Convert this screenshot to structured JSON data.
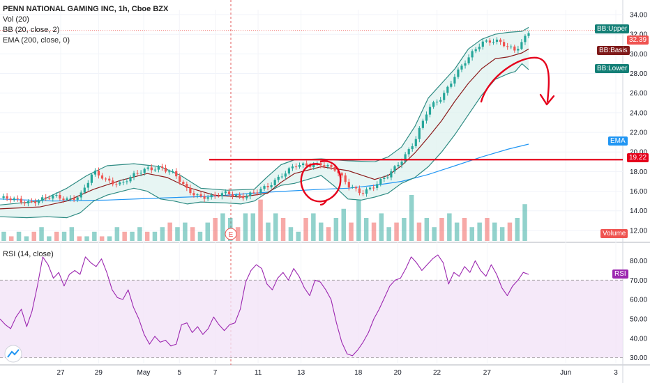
{
  "legend": {
    "title": "PENN NATIONAL GAMING INC, 1h, Cboe BZX",
    "vol": "Vol (20)",
    "bb": "BB (20, close, 2)",
    "ema": "EMA (200, close, 0)",
    "rsi": "RSI (14, close)"
  },
  "tags": {
    "bb_upper": "BB:Upper",
    "bb_basis": "BB:Basis",
    "bb_lower": "BB:Lower",
    "ema": "EMA",
    "volume": "Volume",
    "rsi": "RSI",
    "last_price": "32.39",
    "level_price": "19.22"
  },
  "colors": {
    "up": "#26a69a",
    "down": "#ef5350",
    "bb_band": "#2e8b83",
    "bb_basis": "#8b1a1a",
    "ema": "#2196f3",
    "rsi": "#9c27b0",
    "annotation": "#e5001b"
  },
  "chart_data": [
    {
      "type": "candlestick",
      "title": "PENN NATIONAL GAMING INC, 1h, Cboe BZX",
      "ylim": [
        11,
        34.5
      ],
      "y_ticks": [
        12,
        14,
        16,
        18,
        20,
        22,
        24,
        26,
        28,
        30,
        32,
        34
      ],
      "x_ticks": [
        "27",
        "29",
        "May",
        "5",
        "7",
        "11",
        "13",
        "18",
        "20",
        "22",
        "27",
        "Jun",
        "3"
      ],
      "series": {
        "close_path": [
          [
            0,
            15.3
          ],
          [
            2,
            14.9
          ],
          [
            4,
            15.4
          ],
          [
            5,
            15.2
          ],
          [
            6,
            15.6
          ],
          [
            7,
            17.9
          ],
          [
            8,
            17.1
          ],
          [
            9,
            16.8
          ],
          [
            11,
            18.3
          ],
          [
            12,
            18.5
          ],
          [
            13,
            17.7
          ],
          [
            14,
            16.1
          ],
          [
            15,
            15.5
          ],
          [
            16,
            15.4
          ],
          [
            17,
            15.8
          ],
          [
            18,
            15.5
          ],
          [
            19,
            15.8
          ],
          [
            20,
            16.4
          ],
          [
            21,
            17.7
          ],
          [
            22,
            18.6
          ],
          [
            23,
            18.5
          ],
          [
            24,
            18.9
          ],
          [
            25,
            18.3
          ],
          [
            26,
            16.5
          ],
          [
            27,
            15.9
          ],
          [
            28,
            16.6
          ],
          [
            29,
            17.5
          ],
          [
            30,
            19.2
          ],
          [
            31,
            21.2
          ],
          [
            32,
            24.3
          ],
          [
            33,
            25.6
          ],
          [
            34,
            27.9
          ],
          [
            35,
            29.5
          ],
          [
            36,
            31.2
          ],
          [
            37,
            31.5
          ],
          [
            38,
            30.6
          ],
          [
            38.5,
            30.2
          ],
          [
            39,
            31.2
          ],
          [
            39.5,
            32.3
          ]
        ],
        "bb_upper": [
          [
            0,
            14.6
          ],
          [
            3,
            15.0
          ],
          [
            5,
            16.3
          ],
          [
            6.5,
            17.6
          ],
          [
            8,
            18.6
          ],
          [
            10,
            18.8
          ],
          [
            12,
            18.5
          ],
          [
            13.5,
            17.6
          ],
          [
            15,
            16.3
          ],
          [
            17,
            16.1
          ],
          [
            19,
            16.2
          ],
          [
            20,
            17.5
          ],
          [
            21,
            18.7
          ],
          [
            22,
            19.2
          ],
          [
            24,
            19.3
          ],
          [
            26,
            19.1
          ],
          [
            28,
            19.0
          ],
          [
            29,
            19.5
          ],
          [
            30,
            20.5
          ],
          [
            31,
            22.6
          ],
          [
            32,
            25.5
          ],
          [
            33,
            27.0
          ],
          [
            34,
            28.5
          ],
          [
            35,
            30.5
          ],
          [
            36,
            31.5
          ],
          [
            37,
            32.0
          ],
          [
            38,
            32.2
          ],
          [
            39,
            32.3
          ],
          [
            39.5,
            32.7
          ]
        ],
        "bb_basis": [
          [
            0,
            14.2
          ],
          [
            3,
            14.4
          ],
          [
            5,
            15.0
          ],
          [
            7,
            16.2
          ],
          [
            9,
            17.1
          ],
          [
            11,
            17.8
          ],
          [
            12.5,
            17.4
          ],
          [
            14,
            16.4
          ],
          [
            16,
            15.6
          ],
          [
            18,
            15.4
          ],
          [
            20,
            15.8
          ],
          [
            21,
            16.9
          ],
          [
            22,
            17.8
          ],
          [
            24,
            18.5
          ],
          [
            26,
            18.1
          ],
          [
            28,
            17.2
          ],
          [
            29,
            17.6
          ],
          [
            30,
            18.6
          ],
          [
            31,
            19.9
          ],
          [
            32,
            21.5
          ],
          [
            33,
            23.2
          ],
          [
            34,
            25.2
          ],
          [
            35,
            27.0
          ],
          [
            36,
            28.5
          ],
          [
            37,
            29.5
          ],
          [
            38,
            29.7
          ],
          [
            39,
            30.1
          ],
          [
            39.5,
            30.5
          ]
        ],
        "bb_lower": [
          [
            0,
            13.4
          ],
          [
            2,
            13.3
          ],
          [
            3.5,
            13.4
          ],
          [
            5,
            13.3
          ],
          [
            6,
            13.8
          ],
          [
            7,
            15.0
          ],
          [
            8,
            15.6
          ],
          [
            10,
            16.3
          ],
          [
            11,
            16.0
          ],
          [
            12,
            15.2
          ],
          [
            13,
            15.0
          ],
          [
            14,
            14.7
          ],
          [
            15,
            14.9
          ],
          [
            17,
            14.8
          ],
          [
            18,
            14.7
          ],
          [
            19,
            15.0
          ],
          [
            20,
            15.9
          ],
          [
            21,
            16.6
          ],
          [
            22,
            16.8
          ],
          [
            24,
            17.6
          ],
          [
            25,
            16.5
          ],
          [
            26,
            15.2
          ],
          [
            27,
            15.1
          ],
          [
            28,
            15.4
          ],
          [
            29,
            15.8
          ],
          [
            30,
            16.8
          ],
          [
            31,
            17.4
          ],
          [
            32,
            18.5
          ],
          [
            33,
            20.0
          ],
          [
            34,
            21.8
          ],
          [
            35,
            23.8
          ],
          [
            36,
            25.8
          ],
          [
            37,
            27.4
          ],
          [
            38,
            28.0
          ],
          [
            38.5,
            28.2
          ],
          [
            39,
            29.0
          ],
          [
            39.5,
            28.4
          ]
        ],
        "ema_200": [
          [
            0,
            15.2
          ],
          [
            4,
            15.0
          ],
          [
            8,
            15.1
          ],
          [
            12,
            15.3
          ],
          [
            16,
            15.5
          ],
          [
            20,
            15.9
          ],
          [
            24,
            16.2
          ],
          [
            26,
            16.3
          ],
          [
            28,
            16.6
          ],
          [
            30,
            17.0
          ],
          [
            32,
            17.7
          ],
          [
            34,
            18.6
          ],
          [
            36,
            19.5
          ],
          [
            38,
            20.3
          ],
          [
            39.5,
            20.8
          ]
        ]
      },
      "last_price": 32.39,
      "horizontal_level": 19.22
    },
    {
      "type": "bar",
      "title": "Vol (20)",
      "values": [
        2,
        1,
        2,
        1,
        2,
        3,
        1,
        2,
        2,
        3,
        1,
        1,
        2,
        1,
        1,
        3,
        2,
        2,
        3,
        2,
        2,
        3,
        4,
        3,
        4,
        3,
        2,
        4,
        5,
        6,
        5,
        3,
        6,
        6,
        9,
        4,
        6,
        5,
        3,
        2,
        5,
        6,
        4,
        3,
        5,
        7,
        4,
        9,
        5,
        4,
        6,
        3,
        4,
        5,
        10,
        4,
        5,
        3,
        5,
        6,
        4,
        5,
        3,
        4,
        5,
        4,
        3,
        4,
        5,
        8
      ]
    },
    {
      "type": "line",
      "title": "RSI (14, close)",
      "ylim": [
        27,
        87
      ],
      "y_ticks": [
        30,
        40,
        50,
        60,
        70,
        80
      ],
      "overbought": 70,
      "oversold": 30,
      "values": [
        50,
        47,
        45,
        51,
        55,
        46,
        54,
        67,
        82,
        78,
        71,
        74,
        67,
        73,
        75,
        73,
        82,
        79,
        77,
        81,
        74,
        65,
        61,
        60,
        65,
        56,
        50,
        42,
        37,
        41,
        38,
        39,
        36,
        37,
        47,
        48,
        43,
        46,
        42,
        45,
        51,
        47,
        44,
        47,
        48,
        55,
        69,
        75,
        78,
        76,
        68,
        65,
        71,
        74,
        70,
        76,
        72,
        66,
        62,
        70,
        69,
        65,
        60,
        48,
        38,
        32,
        31,
        34,
        38,
        43,
        50,
        55,
        61,
        67,
        70,
        71,
        76,
        82,
        79,
        75,
        78,
        81,
        83,
        79,
        68,
        74,
        72,
        77,
        74,
        80,
        75,
        72,
        78,
        73,
        66,
        62,
        67,
        70,
        74,
        73
      ]
    }
  ]
}
